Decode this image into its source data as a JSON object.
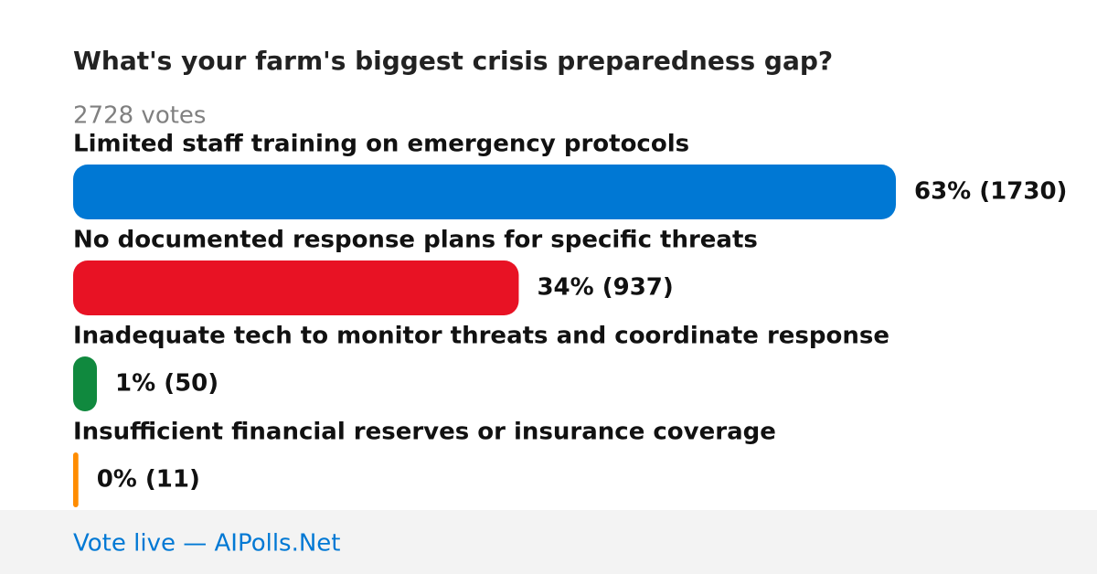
{
  "chart_data": {
    "type": "bar",
    "title": "What's your farm's biggest crisis preparedness gap?",
    "subtitle": "2728 votes",
    "categories": [
      "Limited staff training on emergency protocols",
      "No documented response plans for specific threats",
      "Inadequate tech to monitor threats and coordinate response",
      "Insufficient financial reserves or insurance coverage"
    ],
    "values": [
      1730,
      937,
      50,
      11
    ],
    "value_labels": [
      "63% (1730)",
      "34% (937)",
      "1% (50)",
      "0% (11)"
    ],
    "colors": [
      "#0078d4",
      "#e81224",
      "#10893e",
      "#ff8c00"
    ],
    "footer": "Vote live — AIPolls.Net"
  }
}
